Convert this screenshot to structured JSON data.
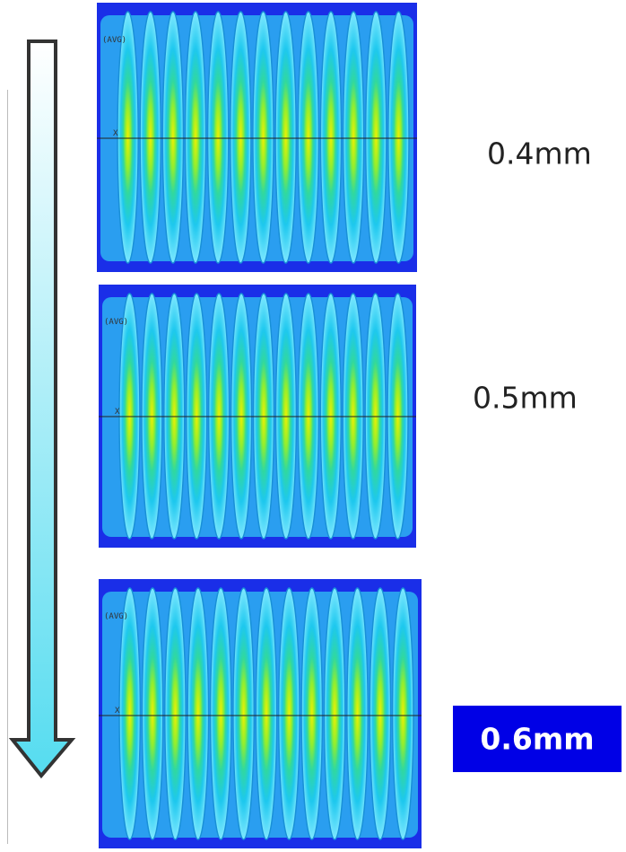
{
  "panels": [
    {
      "label": "0.4mm",
      "legend": "(AVG)",
      "axis": "X"
    },
    {
      "label": "0.5mm",
      "legend": "(AVG)",
      "axis": "X"
    },
    {
      "label": "0.6mm",
      "legend": "(AVG)",
      "axis": "X"
    }
  ]
}
